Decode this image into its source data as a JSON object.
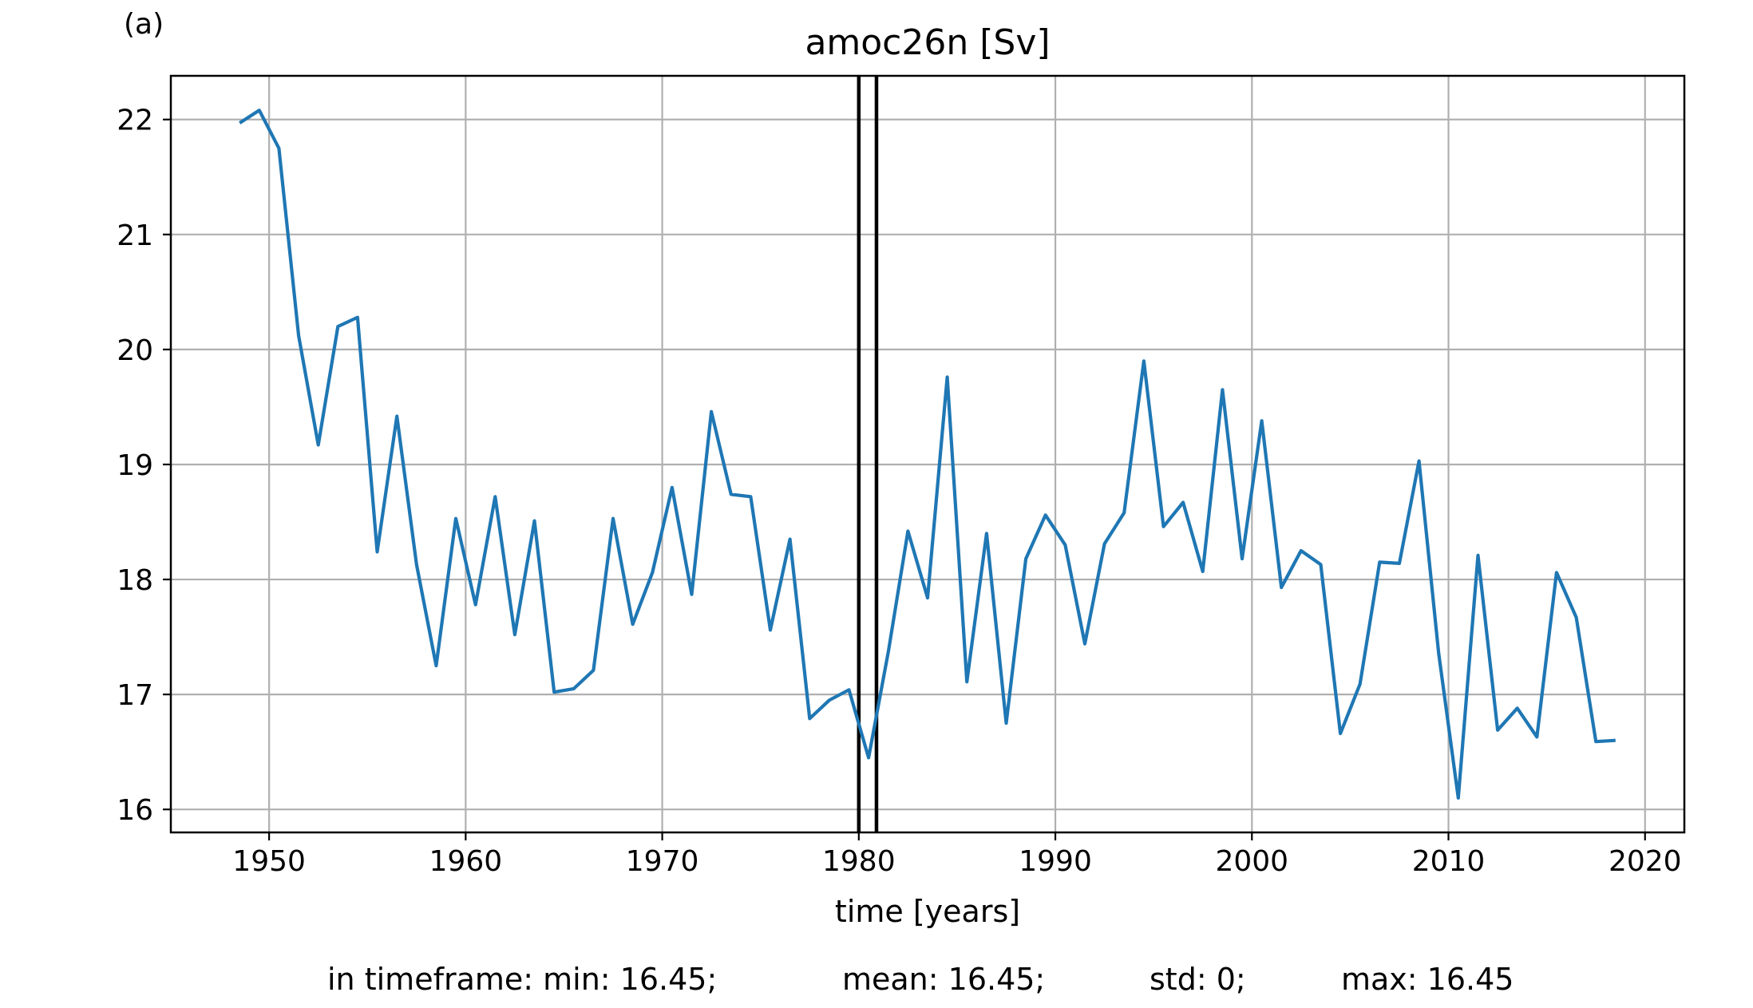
{
  "panel_label": "(a)",
  "stats": {
    "min": "in timeframe: min: 16.45;",
    "mean": "mean: 16.45;",
    "std": "std: 0;",
    "max": "max: 16.45"
  },
  "chart_data": {
    "type": "line",
    "title": "amoc26n [Sv]",
    "xlabel": "time [years]",
    "ylabel": "",
    "xlim": [
      1945,
      2022
    ],
    "ylim": [
      15.8,
      22.38
    ],
    "xticks": [
      1950,
      1960,
      1970,
      1980,
      1990,
      2000,
      2010,
      2020
    ],
    "yticks": [
      16,
      17,
      18,
      19,
      20,
      21,
      22
    ],
    "grid": true,
    "colors": {
      "line": "#1f77b4",
      "vlines": "#000000",
      "grid": "#b0b0b0"
    },
    "vlines": [
      1980.0,
      1980.9
    ],
    "series": [
      {
        "x": [
          1948.5,
          1949.5,
          1950.5,
          1951.5,
          1952.5,
          1953.5,
          1954.5,
          1955.5,
          1956.5,
          1957.5,
          1958.5,
          1959.5,
          1960.5,
          1961.5,
          1962.5,
          1963.5,
          1964.5,
          1965.5,
          1966.5,
          1967.5,
          1968.5,
          1969.5,
          1970.5,
          1971.5,
          1972.5,
          1973.5,
          1974.5,
          1975.5,
          1976.5,
          1977.5,
          1978.5,
          1979.5,
          1980.5,
          1981.5,
          1982.5,
          1983.5,
          1984.5,
          1985.5,
          1986.5,
          1987.5,
          1988.5,
          1989.5,
          1990.5,
          1991.5,
          1992.5,
          1993.5,
          1994.5,
          1995.5,
          1996.5,
          1997.5,
          1998.5,
          1999.5,
          2000.5,
          2001.5,
          2002.5,
          2003.5,
          2004.5,
          2005.5,
          2006.5,
          2007.5,
          2008.5,
          2009.5,
          2010.5,
          2011.5,
          2012.5,
          2013.5,
          2014.5,
          2015.5,
          2016.5,
          2017.5,
          2018.5
        ],
        "y": [
          21.97,
          22.08,
          21.75,
          20.12,
          19.17,
          20.2,
          20.28,
          18.24,
          19.42,
          18.13,
          17.25,
          18.53,
          17.78,
          18.72,
          17.52,
          18.51,
          17.02,
          17.05,
          17.21,
          18.53,
          17.61,
          18.06,
          18.8,
          17.87,
          19.46,
          18.74,
          18.72,
          17.56,
          18.35,
          16.79,
          16.95,
          17.04,
          16.45,
          17.37,
          18.42,
          17.84,
          19.76,
          17.11,
          18.4,
          16.75,
          18.18,
          18.56,
          18.3,
          17.44,
          18.31,
          18.58,
          19.9,
          18.46,
          18.67,
          18.07,
          19.65,
          18.18,
          19.38,
          17.93,
          18.25,
          18.13,
          16.66,
          17.09,
          18.15,
          18.14,
          19.03,
          17.36,
          16.1,
          18.21,
          16.69,
          16.88,
          16.63,
          18.06,
          17.67,
          16.59,
          16.6
        ]
      }
    ]
  }
}
